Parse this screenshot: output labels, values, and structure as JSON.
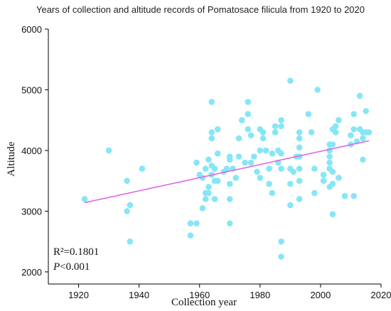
{
  "chart_data": {
    "type": "scatter",
    "title": "Years of collection and altitude records of Pomatosace filicula from 1920 to 2020",
    "xlabel": "Collection year",
    "ylabel": "Altitude",
    "xlim": [
      1910,
      2020
    ],
    "ylim": [
      1800,
      6000
    ],
    "xticks": [
      1920,
      1940,
      1960,
      1980,
      2000,
      2020
    ],
    "yticks": [
      2000,
      3000,
      4000,
      5000,
      6000
    ],
    "grid": false,
    "point_color": "#87E6F5",
    "trend_color": "#E066E6",
    "trendline": {
      "x": [
        1922,
        2016
      ],
      "y": [
        3140,
        4160
      ]
    },
    "annotations": {
      "r2": "R²=0.1801",
      "p_italic": "P",
      "p_rest": "<0.001"
    },
    "points": [
      [
        1922,
        3200
      ],
      [
        1930,
        4000
      ],
      [
        1936,
        3500
      ],
      [
        1936,
        3000
      ],
      [
        1937,
        3100
      ],
      [
        1937,
        2500
      ],
      [
        1941,
        3700
      ],
      [
        1957,
        2800
      ],
      [
        1957,
        2600
      ],
      [
        1959,
        2800
      ],
      [
        1959,
        3800
      ],
      [
        1960,
        3600
      ],
      [
        1961,
        3550
      ],
      [
        1961,
        3050
      ],
      [
        1962,
        3300
      ],
      [
        1962,
        3200
      ],
      [
        1962,
        3700
      ],
      [
        1963,
        3850
      ],
      [
        1963,
        3400
      ],
      [
        1963,
        3300
      ],
      [
        1964,
        4800
      ],
      [
        1964,
        4300
      ],
      [
        1964,
        4200
      ],
      [
        1964,
        3750
      ],
      [
        1964,
        3600
      ],
      [
        1965,
        3500
      ],
      [
        1965,
        3200
      ],
      [
        1965,
        3700
      ],
      [
        1966,
        4350
      ],
      [
        1966,
        3950
      ],
      [
        1966,
        3500
      ],
      [
        1968,
        3650
      ],
      [
        1969,
        3700
      ],
      [
        1970,
        3900
      ],
      [
        1970,
        3850
      ],
      [
        1970,
        3450
      ],
      [
        1970,
        3200
      ],
      [
        1970,
        2800
      ],
      [
        1971,
        3700
      ],
      [
        1972,
        3550
      ],
      [
        1973,
        4200
      ],
      [
        1973,
        3900
      ],
      [
        1974,
        4500
      ],
      [
        1975,
        3800
      ],
      [
        1976,
        4800
      ],
      [
        1976,
        4600
      ],
      [
        1976,
        4350
      ],
      [
        1977,
        4250
      ],
      [
        1977,
        3800
      ],
      [
        1978,
        3900
      ],
      [
        1979,
        3650
      ],
      [
        1980,
        3550
      ],
      [
        1980,
        4000
      ],
      [
        1980,
        4350
      ],
      [
        1981,
        4300
      ],
      [
        1981,
        4200
      ],
      [
        1982,
        4000
      ],
      [
        1983,
        3700
      ],
      [
        1983,
        3450
      ],
      [
        1984,
        3950
      ],
      [
        1984,
        3300
      ],
      [
        1985,
        4400
      ],
      [
        1985,
        4300
      ],
      [
        1986,
        4000
      ],
      [
        1986,
        3800
      ],
      [
        1987,
        4500
      ],
      [
        1987,
        4400
      ],
      [
        1987,
        3950
      ],
      [
        1987,
        3700
      ],
      [
        1987,
        2500
      ],
      [
        1987,
        2250
      ],
      [
        1990,
        5150
      ],
      [
        1990,
        3700
      ],
      [
        1990,
        3450
      ],
      [
        1990,
        3100
      ],
      [
        1991,
        3650
      ],
      [
        1992,
        3900
      ],
      [
        1993,
        4300
      ],
      [
        1993,
        4200
      ],
      [
        1993,
        4050
      ],
      [
        1993,
        3900
      ],
      [
        1993,
        3700
      ],
      [
        1993,
        3500
      ],
      [
        1993,
        3200
      ],
      [
        1996,
        4600
      ],
      [
        1997,
        4300
      ],
      [
        1998,
        3700
      ],
      [
        1998,
        3300
      ],
      [
        1999,
        5000
      ],
      [
        2001,
        3600
      ],
      [
        2001,
        3500
      ],
      [
        2003,
        4100
      ],
      [
        2003,
        4000
      ],
      [
        2003,
        3900
      ],
      [
        2003,
        3800
      ],
      [
        2003,
        3700
      ],
      [
        2003,
        3400
      ],
      [
        2004,
        4350
      ],
      [
        2004,
        4100
      ],
      [
        2004,
        3650
      ],
      [
        2004,
        3450
      ],
      [
        2004,
        2950
      ],
      [
        2005,
        4400
      ],
      [
        2005,
        4300
      ],
      [
        2006,
        4500
      ],
      [
        2006,
        3550
      ],
      [
        2008,
        3250
      ],
      [
        2010,
        4250
      ],
      [
        2010,
        4100
      ],
      [
        2011,
        4600
      ],
      [
        2011,
        4350
      ],
      [
        2011,
        3250
      ],
      [
        2012,
        4150
      ],
      [
        2013,
        4900
      ],
      [
        2013,
        4350
      ],
      [
        2014,
        4300
      ],
      [
        2014,
        4200
      ],
      [
        2014,
        3850
      ],
      [
        2015,
        4650
      ],
      [
        2015,
        4300
      ],
      [
        2016,
        4300
      ]
    ]
  }
}
